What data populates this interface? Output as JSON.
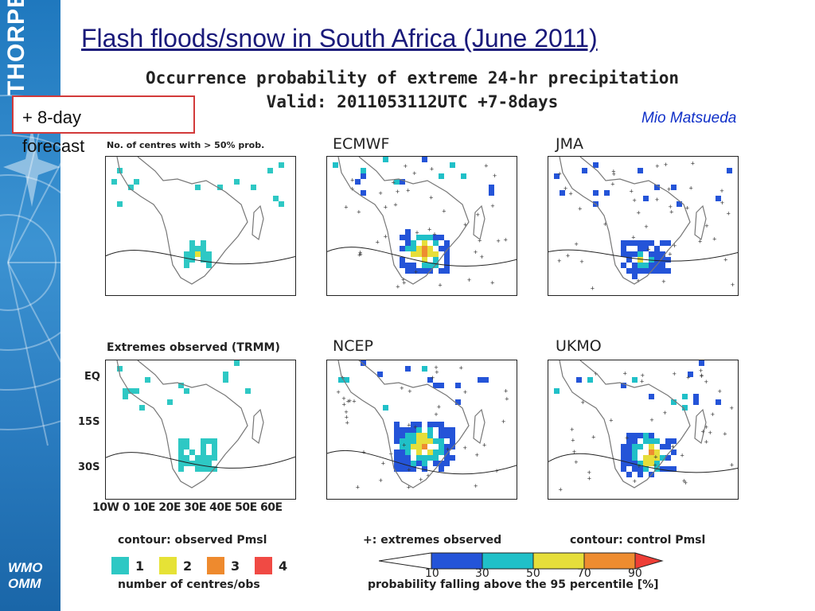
{
  "sidebar": {
    "brand": "THORPEX",
    "org_line1": "WMO",
    "org_line2": "OMM"
  },
  "slide": {
    "title": "Flash floods/snow in South Africa (June 2011)",
    "author": "Mio Matsueda",
    "forecast_label": "+ 8-day forecast"
  },
  "figure": {
    "title_line1": "Occurrence probability of extreme 24-hr precipitation",
    "title_line2": "Valid: 2011053112UTC +7-8days",
    "panels": [
      {
        "title": "",
        "subtitle": "No. of centres with > 50% prob."
      },
      {
        "title": "ECMWF"
      },
      {
        "title": "JMA"
      },
      {
        "title": "",
        "subtitle": "Extremes observed (TRMM)"
      },
      {
        "title": "NCEP"
      },
      {
        "title": "UKMO"
      }
    ],
    "y_ticks": [
      "EQ",
      "15S",
      "30S"
    ],
    "x_ticks": "10W  0  10E 20E 30E 40E 50E 60E",
    "left_legend": {
      "title": "contour: observed Pmsl",
      "items": [
        {
          "label": "1",
          "color": "#2ec8c4"
        },
        {
          "label": "2",
          "color": "#e6e236"
        },
        {
          "label": "3",
          "color": "#ee8a2e"
        },
        {
          "label": "4",
          "color": "#f04a44"
        }
      ],
      "caption": "number of centres/obs"
    },
    "right_legend": {
      "plus_label": "+: extremes observed",
      "contour_label": "contour: control Pmsl",
      "colorbar": {
        "ticks": [
          "10",
          "30",
          "50",
          "70",
          "90"
        ],
        "colors": [
          "#ffffff",
          "#2454d8",
          "#20c0c8",
          "#e6de3a",
          "#ee8c30",
          "#ee3e36"
        ]
      },
      "caption": "probability falling above the 95 percentile [%]"
    }
  }
}
